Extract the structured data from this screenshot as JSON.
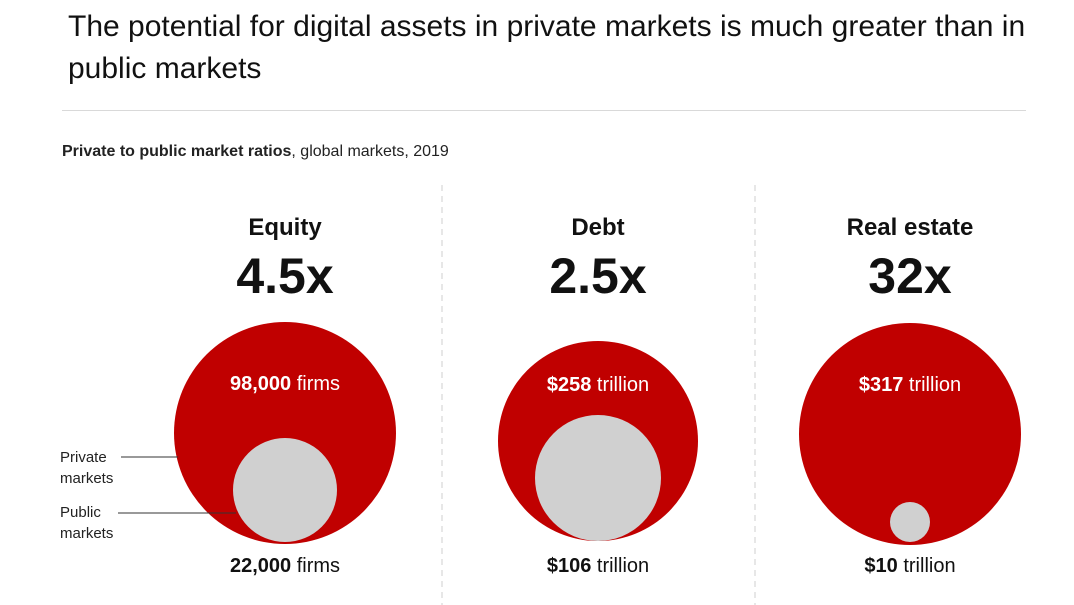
{
  "headline": "The potential for digital assets in private markets is much greater than in public markets",
  "subtitle_bold": "Private to public market ratios",
  "subtitle_rest": ", global markets, 2019",
  "colors": {
    "private": "#c00000",
    "public": "#d0d0d0",
    "divider": "#cfcfcf"
  },
  "legend": {
    "private_label": [
      "Private",
      "markets"
    ],
    "public_label": [
      "Public",
      "markets"
    ]
  },
  "chart_data": {
    "type": "bubble",
    "title": "Private to public market ratios, global markets, 2019",
    "series_names": [
      "Private markets",
      "Public markets"
    ],
    "panels": [
      {
        "category": "Equity",
        "ratio_label": "4.5x",
        "ratio": 4.5,
        "private": {
          "value": 98000,
          "unit_value": "98,000",
          "unit_text": " firms"
        },
        "public": {
          "value": 22000,
          "unit_value": "22,000",
          "unit_text": " firms"
        }
      },
      {
        "category": "Debt",
        "ratio_label": "2.5x",
        "ratio": 2.5,
        "private": {
          "value": 258,
          "unit_value": "$258",
          "unit_text": " trillion"
        },
        "public": {
          "value": 106,
          "unit_value": "$106",
          "unit_text": " trillion"
        }
      },
      {
        "category": "Real estate",
        "ratio_label": "32x",
        "ratio": 32,
        "private": {
          "value": 317,
          "unit_value": "$317",
          "unit_text": " trillion"
        },
        "public": {
          "value": 10,
          "unit_value": "$10",
          "unit_text": " trillion"
        }
      }
    ]
  }
}
